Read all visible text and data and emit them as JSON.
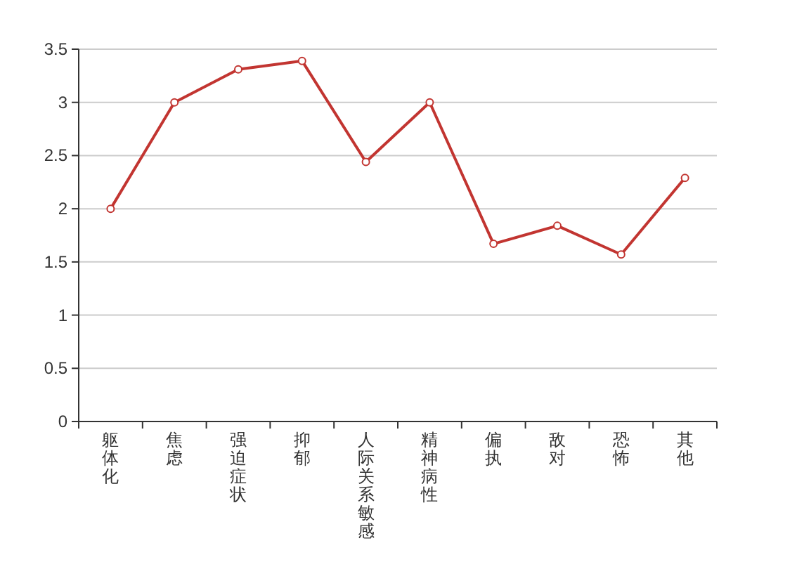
{
  "chart_data": {
    "type": "line",
    "categories": [
      "躯体化",
      "焦虑",
      "强迫症状",
      "抑郁",
      "人际关系敏感",
      "精神病性",
      "偏执",
      "敌对",
      "恐怖",
      "其他"
    ],
    "series": [
      {
        "color": "#c23531",
        "values": [
          2.0,
          3.0,
          3.31,
          3.39,
          2.44,
          3.0,
          1.67,
          1.84,
          1.57,
          2.29
        ]
      }
    ],
    "ylim": [
      0,
      3.5
    ],
    "yticks": [
      0,
      0.5,
      1,
      1.5,
      2,
      2.5,
      3,
      3.5
    ],
    "grid": "y",
    "marker": "circle",
    "line_style": "solid"
  }
}
